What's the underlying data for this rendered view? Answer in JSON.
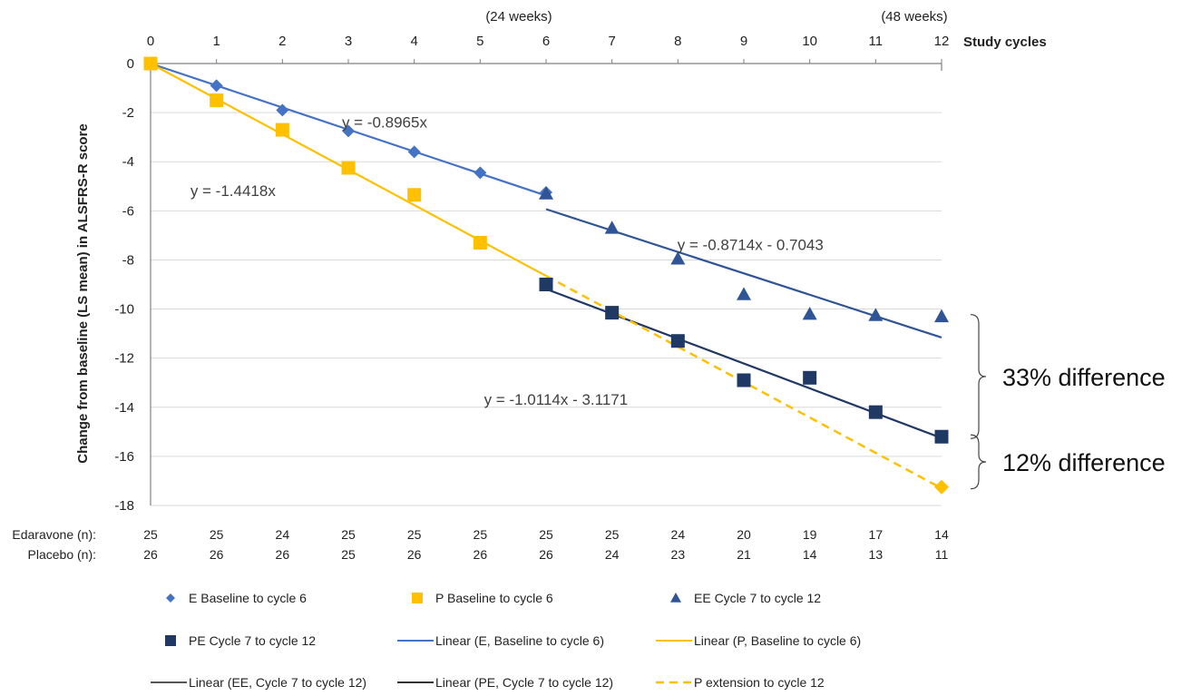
{
  "chart_data": {
    "type": "scatter",
    "xlabel_top": "Study cycles",
    "ylabel": "Change from baseline (LS mean) in ALSFRS-R score",
    "x_ticks": [
      0,
      1,
      2,
      3,
      4,
      5,
      6,
      7,
      8,
      9,
      10,
      11,
      12
    ],
    "xlim": [
      0,
      12
    ],
    "ylim": [
      -18,
      0
    ],
    "y_ticks": [
      0,
      -2,
      -4,
      -6,
      -8,
      -10,
      -12,
      -14,
      -16,
      -18
    ],
    "grid": "horizontal",
    "week_labels": [
      {
        "x": 6,
        "text": "(24 weeks)"
      },
      {
        "x": 12,
        "text": "(48 weeks)"
      }
    ],
    "series": [
      {
        "name": "E Baseline to cycle 6",
        "marker": "diamond",
        "color": "#4472c4",
        "x": [
          0,
          1,
          2,
          3,
          4,
          5,
          6
        ],
        "y": [
          0,
          -0.9,
          -1.9,
          -2.75,
          -3.6,
          -4.45,
          -5.25
        ]
      },
      {
        "name": "P Baseline to cycle 6",
        "marker": "square",
        "color": "#ffc000",
        "x": [
          0,
          1,
          2,
          3,
          4,
          5
        ],
        "y": [
          0,
          -1.5,
          -2.7,
          -4.25,
          -5.35,
          -7.3
        ]
      },
      {
        "name": "EE Cycle 7 to cycle 12",
        "marker": "triangle",
        "color": "#2f5597",
        "x": [
          6,
          7,
          8,
          9,
          10,
          11,
          12
        ],
        "y": [
          -5.3,
          -6.7,
          -7.95,
          -9.4,
          -10.2,
          -10.25,
          -10.3
        ]
      },
      {
        "name": "PE Cycle 7 to cycle 12",
        "marker": "square",
        "color": "#1f3864",
        "x": [
          6,
          7,
          8,
          9,
          10,
          11,
          12
        ],
        "y": [
          -9,
          -10.15,
          -11.3,
          -12.9,
          -12.8,
          -14.2,
          -15.2
        ]
      }
    ],
    "extension_point": {
      "x": 12,
      "y": -17.25,
      "marker": "diamond",
      "color": "#ffc000"
    },
    "trendlines": [
      {
        "name": "Linear (E, Baseline to cycle 6)",
        "color": "#4472c4",
        "style": "solid",
        "slope": -0.8965,
        "intercept": 0,
        "x_range": [
          0,
          6
        ]
      },
      {
        "name": "Linear (P, Baseline to cycle 6)",
        "color": "#ffc000",
        "style": "solid",
        "slope": -1.4418,
        "intercept": 0,
        "x_range": [
          0,
          6
        ]
      },
      {
        "name": "Linear (EE, Cycle 7 to cycle 12)",
        "color": "#2f5597",
        "style": "solid",
        "slope": -0.8714,
        "intercept": -0.7043,
        "x_range": [
          6,
          12
        ]
      },
      {
        "name": "Linear (PE, Cycle 7 to cycle 12)",
        "color": "#1f3864",
        "style": "solid",
        "slope": -1.0114,
        "intercept": -3.1171,
        "x_range": [
          6,
          12
        ]
      },
      {
        "name": "P extension to cycle 12",
        "color": "#ffc000",
        "style": "dashed",
        "slope": -1.4418,
        "intercept": 0,
        "x_range": [
          6,
          12
        ]
      }
    ],
    "equations": [
      {
        "text": "y = -0.8965x",
        "x": 3.55,
        "y": -2.6
      },
      {
        "text": "y = -1.4418x",
        "x": 1.25,
        "y": -5.4
      },
      {
        "text": "y = -0.8714x - 0.7043",
        "x": 9.1,
        "y": -7.6
      },
      {
        "text": "y = -1.0114x - 3.1171",
        "x": 6.15,
        "y": -13.9
      }
    ],
    "brackets": [
      {
        "text": "33% difference",
        "y_from": -10.3,
        "y_to": -15.2
      },
      {
        "text": "12% difference",
        "y_from": -15.2,
        "y_to": -17.25
      }
    ],
    "counts": {
      "edaravone_label": "Edaravone (n):",
      "placebo_label": "Placebo (n):",
      "edaravone": [
        25,
        25,
        24,
        25,
        25,
        25,
        25,
        25,
        24,
        20,
        19,
        17,
        14
      ],
      "placebo": [
        26,
        26,
        26,
        25,
        26,
        26,
        26,
        24,
        23,
        21,
        14,
        13,
        11
      ]
    },
    "legend": {
      "placement": "bottom",
      "items": [
        {
          "label": "E Baseline to cycle 6",
          "kind": "diamond",
          "color": "#4472c4"
        },
        {
          "label": "P Baseline to cycle 6",
          "kind": "square",
          "color": "#ffc000"
        },
        {
          "label": "EE Cycle 7 to cycle 12",
          "kind": "triangle",
          "color": "#2f5597"
        },
        {
          "label": "PE Cycle 7 to cycle 12",
          "kind": "square",
          "color": "#1f3864"
        },
        {
          "label": "Linear (E, Baseline to cycle 6)",
          "kind": "line",
          "color": "#4472c4"
        },
        {
          "label": "Linear (P, Baseline to cycle 6)",
          "kind": "line",
          "color": "#ffc000"
        },
        {
          "label": "Linear (EE, Cycle 7 to cycle 12)",
          "kind": "line",
          "color": "#555555"
        },
        {
          "label": "Linear (PE, Cycle 7 to cycle 12)",
          "kind": "line",
          "color": "#333333"
        },
        {
          "label": "P extension to cycle 12",
          "kind": "dash",
          "color": "#ffc000"
        }
      ]
    }
  }
}
